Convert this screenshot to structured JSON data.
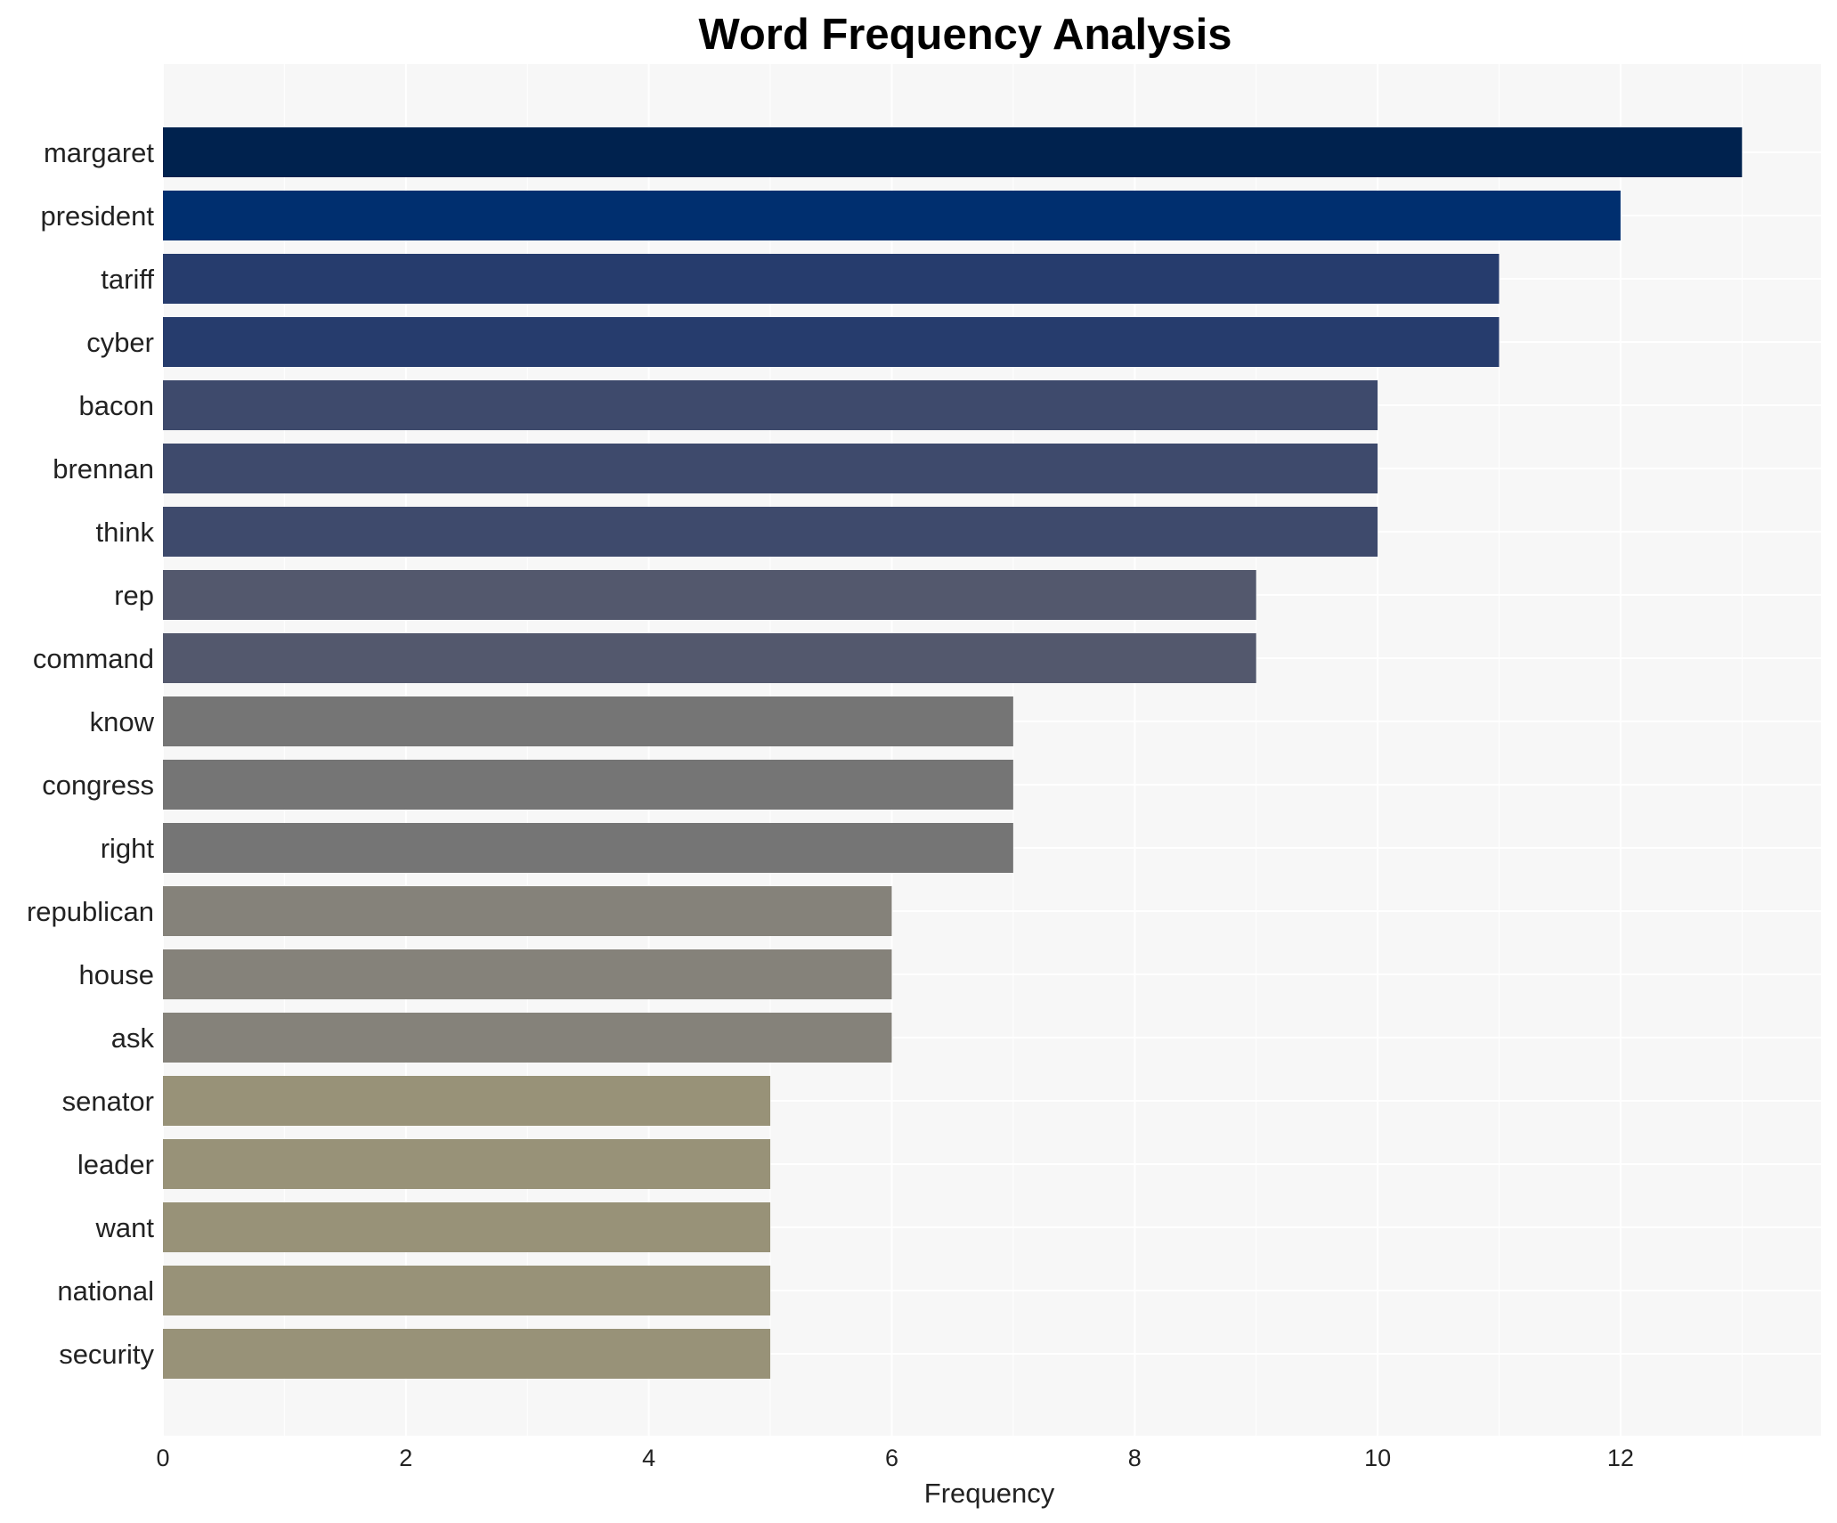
{
  "chart_data": {
    "type": "bar",
    "orientation": "horizontal",
    "title": "Word Frequency Analysis",
    "xlabel": "Frequency",
    "ylabel": "",
    "xlim": [
      0,
      13.65
    ],
    "x_ticks": [
      0,
      2,
      4,
      6,
      8,
      10,
      12
    ],
    "grid": true,
    "legend": "none",
    "categories": [
      "margaret",
      "president",
      "tariff",
      "cyber",
      "bacon",
      "brennan",
      "think",
      "rep",
      "command",
      "know",
      "congress",
      "right",
      "republican",
      "house",
      "ask",
      "senator",
      "leader",
      "want",
      "national",
      "security"
    ],
    "values": [
      13,
      12,
      11,
      11,
      10,
      10,
      10,
      9,
      9,
      7,
      7,
      7,
      6,
      6,
      6,
      5,
      5,
      5,
      5,
      5
    ],
    "colors": [
      "#00224e",
      "#002f6f",
      "#263c6d",
      "#263c6d",
      "#3e4a6c",
      "#3e4a6c",
      "#3e4a6c",
      "#53586d",
      "#53586d",
      "#757575",
      "#757575",
      "#757575",
      "#85827a",
      "#85827a",
      "#85827a",
      "#989278",
      "#989278",
      "#989278",
      "#989278",
      "#989278"
    ]
  },
  "style": {
    "plot_background": "#f7f7f7",
    "grid_color": "#ffffff",
    "page_background": "#ffffff"
  }
}
